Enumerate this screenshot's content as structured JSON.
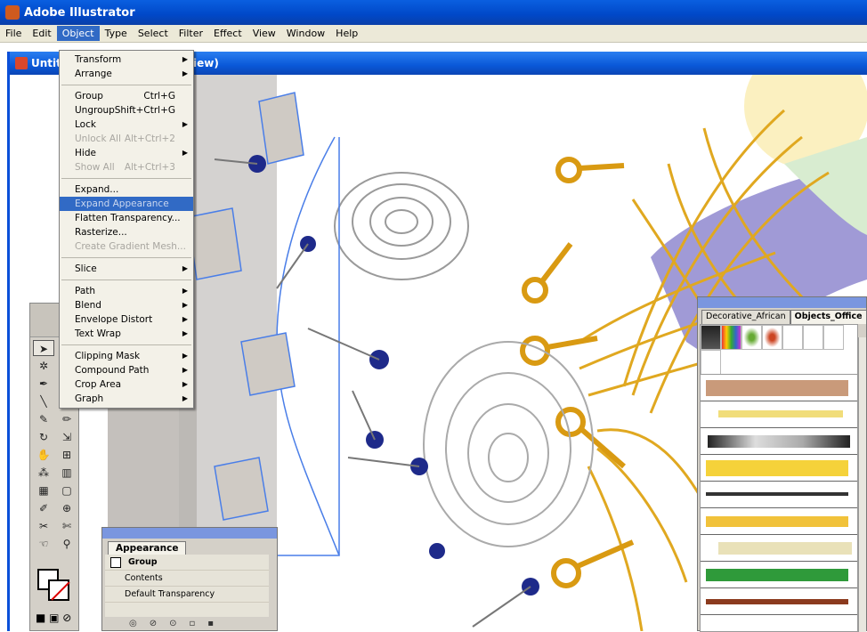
{
  "app": {
    "title": "Adobe Illustrator",
    "doc_title_left": "Untit",
    "doc_title_right": "iew)"
  },
  "menubar": [
    "File",
    "Edit",
    "Object",
    "Type",
    "Select",
    "Filter",
    "Effect",
    "View",
    "Window",
    "Help"
  ],
  "object_menu": [
    {
      "label": "Transform",
      "arrow": true
    },
    {
      "label": "Arrange",
      "arrow": true
    },
    {
      "sep": true
    },
    {
      "label": "Group",
      "shortcut": "Ctrl+G"
    },
    {
      "label": "Ungroup",
      "shortcut": "Shift+Ctrl+G"
    },
    {
      "label": "Lock",
      "arrow": true
    },
    {
      "label": "Unlock All",
      "shortcut": "Alt+Ctrl+2",
      "disabled": true
    },
    {
      "label": "Hide",
      "arrow": true
    },
    {
      "label": "Show All",
      "shortcut": "Alt+Ctrl+3",
      "disabled": true
    },
    {
      "sep": true
    },
    {
      "label": "Expand..."
    },
    {
      "label": "Expand Appearance",
      "highlight": true
    },
    {
      "label": "Flatten Transparency..."
    },
    {
      "label": "Rasterize..."
    },
    {
      "label": "Create Gradient Mesh...",
      "disabled": true
    },
    {
      "sep": true
    },
    {
      "label": "Slice",
      "arrow": true
    },
    {
      "sep": true
    },
    {
      "label": "Path",
      "arrow": true
    },
    {
      "label": "Blend",
      "arrow": true
    },
    {
      "label": "Envelope Distort",
      "arrow": true
    },
    {
      "label": "Text Wrap",
      "arrow": true
    },
    {
      "sep": true
    },
    {
      "label": "Clipping Mask",
      "arrow": true
    },
    {
      "label": "Compound Path",
      "arrow": true
    },
    {
      "label": "Crop Area",
      "arrow": true
    },
    {
      "label": "Graph",
      "arrow": true
    }
  ],
  "appearance": {
    "tab": "Appearance",
    "rows": [
      "Group",
      "Contents",
      "Default Transparency"
    ]
  },
  "brushes": {
    "tabs": [
      "Decorative_African",
      "Objects_Office"
    ],
    "active_tab": "Objects_Office"
  },
  "colors": {
    "title_blue": "#0048c8",
    "menu_bg": "#ece9d8",
    "highlight": "#316ac5",
    "selection_blue": "#4a7ee8",
    "key_gold": "#e0a820",
    "pin_navy": "#1e2a8a",
    "lavender": "#a09ad6"
  }
}
